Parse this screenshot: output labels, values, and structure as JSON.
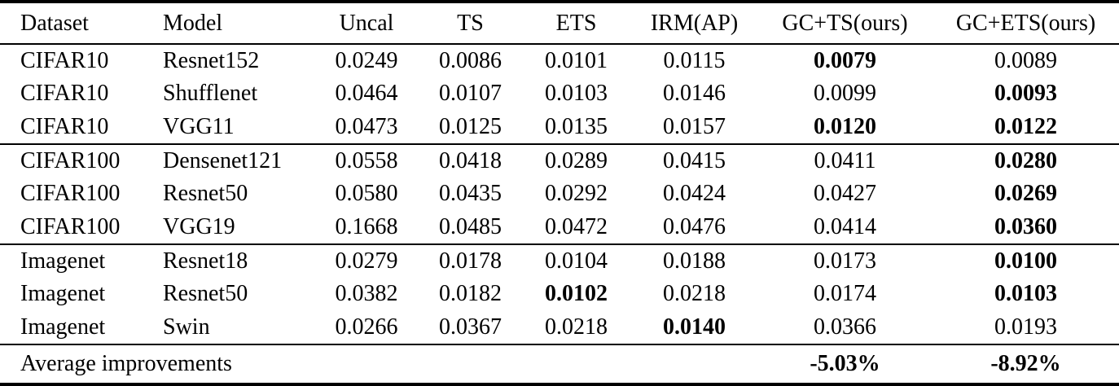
{
  "table": {
    "header": [
      "Dataset",
      "Model",
      "Uncal",
      "TS",
      "ETS",
      "IRM(AP)",
      "GC+TS(ours)",
      "GC+ETS(ours)"
    ],
    "groups": [
      {
        "rows": [
          {
            "cells": [
              "CIFAR10",
              "Resnet152",
              "0.0249",
              "0.0086",
              "0.0101",
              "0.0115",
              "0.0079",
              "0.0089"
            ],
            "bold_cols": [
              6
            ]
          },
          {
            "cells": [
              "CIFAR10",
              "Shufflenet",
              "0.0464",
              "0.0107",
              "0.0103",
              "0.0146",
              "0.0099",
              "0.0093"
            ],
            "bold_cols": [
              7
            ]
          },
          {
            "cells": [
              "CIFAR10",
              "VGG11",
              "0.0473",
              "0.0125",
              "0.0135",
              "0.0157",
              "0.0120",
              "0.0122"
            ],
            "bold_cols": [
              6,
              7
            ]
          }
        ]
      },
      {
        "rows": [
          {
            "cells": [
              "CIFAR100",
              "Densenet121",
              "0.0558",
              "0.0418",
              "0.0289",
              "0.0415",
              "0.0411",
              "0.0280"
            ],
            "bold_cols": [
              7
            ]
          },
          {
            "cells": [
              "CIFAR100",
              "Resnet50",
              "0.0580",
              "0.0435",
              "0.0292",
              "0.0424",
              "0.0427",
              "0.0269"
            ],
            "bold_cols": [
              7
            ]
          },
          {
            "cells": [
              "CIFAR100",
              "VGG19",
              "0.1668",
              "0.0485",
              "0.0472",
              "0.0476",
              "0.0414",
              "0.0360"
            ],
            "bold_cols": [
              7
            ]
          }
        ]
      },
      {
        "rows": [
          {
            "cells": [
              "Imagenet",
              "Resnet18",
              "0.0279",
              "0.0178",
              "0.0104",
              "0.0188",
              "0.0173",
              "0.0100"
            ],
            "bold_cols": [
              7
            ]
          },
          {
            "cells": [
              "Imagenet",
              "Resnet50",
              "0.0382",
              "0.0182",
              "0.0102",
              "0.0218",
              "0.0174",
              "0.0103"
            ],
            "bold_cols": [
              4,
              7
            ]
          },
          {
            "cells": [
              "Imagenet",
              "Swin",
              "0.0266",
              "0.0367",
              "0.0218",
              "0.0140",
              "0.0366",
              "0.0193"
            ],
            "bold_cols": [
              5
            ]
          }
        ]
      }
    ],
    "footer": {
      "label": "Average improvements",
      "gc_ts_improvement": "-5.03%",
      "gc_ets_improvement": "-8.92%"
    }
  }
}
